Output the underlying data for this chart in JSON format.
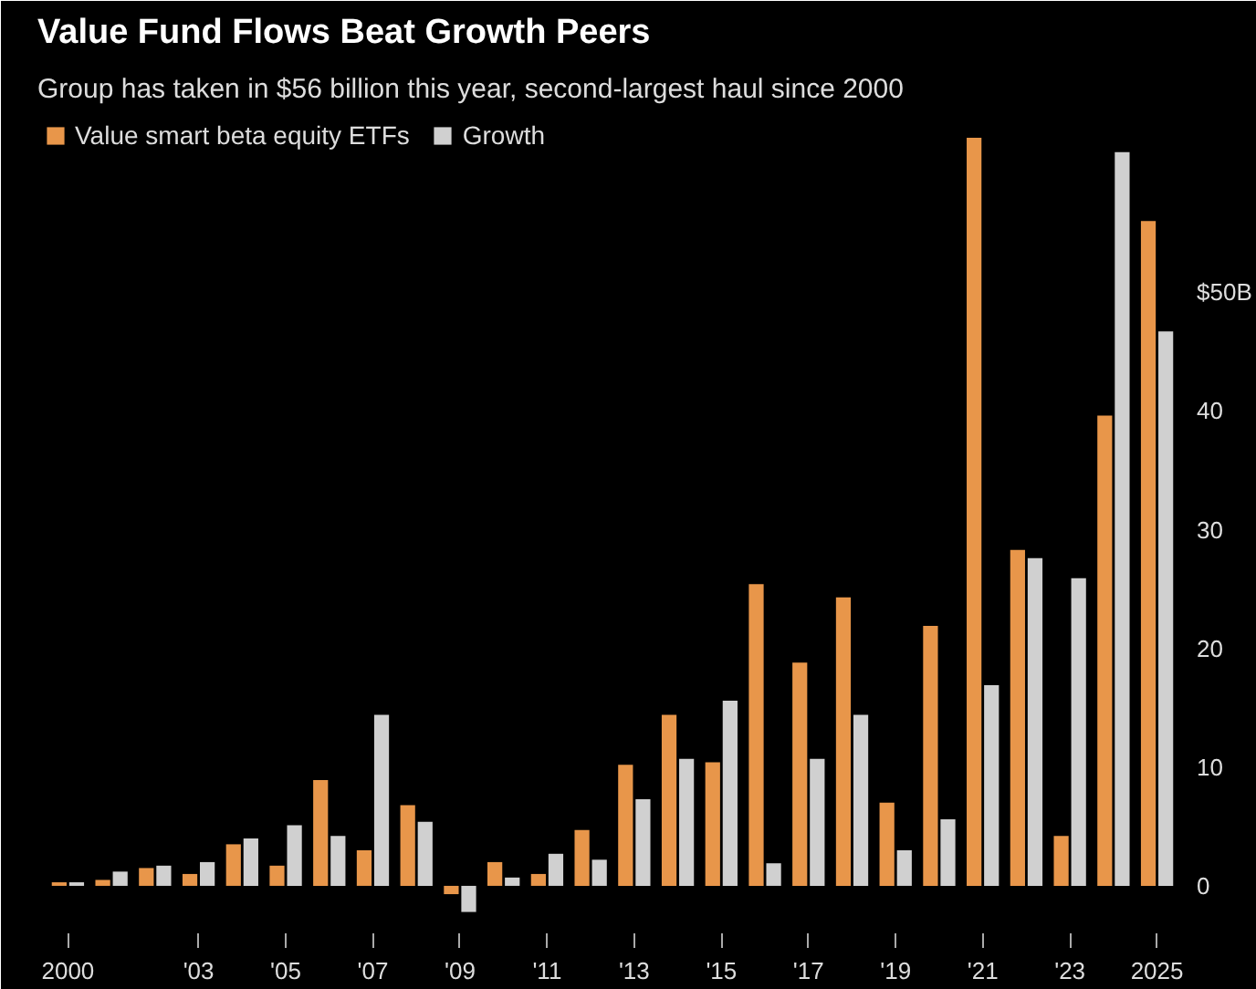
{
  "chart_data": {
    "type": "bar",
    "title": "Value Fund Flows Beat Growth Peers",
    "subtitle": "Group has taken in $56 billion this year, second-largest haul since 2000",
    "x": [
      2000,
      2001,
      2002,
      2003,
      2004,
      2005,
      2006,
      2007,
      2008,
      2009,
      2010,
      2011,
      2012,
      2013,
      2014,
      2015,
      2016,
      2017,
      2018,
      2019,
      2020,
      2021,
      2022,
      2023,
      2024,
      2025
    ],
    "series": [
      {
        "name": "Value smart beta equity ETFs",
        "color": "#e8964a",
        "values": [
          0.3,
          0.5,
          1.5,
          1,
          3.5,
          1.7,
          8.9,
          3,
          6.8,
          -0.7,
          2,
          1,
          4.7,
          10.2,
          14.4,
          10.4,
          25.4,
          18.8,
          24.3,
          7,
          21.9,
          63,
          28.3,
          4.2,
          39.6,
          56
        ]
      },
      {
        "name": "Growth",
        "color": "#d0d0d0",
        "values": [
          0.3,
          1.2,
          1.7,
          2,
          4,
          5.1,
          4.2,
          14.4,
          5.4,
          -2.2,
          0.7,
          2.7,
          2.2,
          7.3,
          10.7,
          15.6,
          1.9,
          10.7,
          14.4,
          3,
          5.6,
          16.9,
          27.6,
          25.9,
          61.8,
          46.7
        ]
      }
    ],
    "xlim": [
      1999.3,
      2025.7
    ],
    "xticks": [
      2000,
      {
        "value": 2003,
        "label": "'03"
      },
      {
        "value": 2005,
        "label": "'05"
      },
      {
        "value": 2007,
        "label": "'07"
      },
      {
        "value": 2009,
        "label": "'09"
      },
      {
        "value": 2011,
        "label": "'11"
      },
      {
        "value": 2013,
        "label": "'13"
      },
      {
        "value": 2015,
        "label": "'15"
      },
      {
        "value": 2017,
        "label": "'17"
      },
      {
        "value": 2019,
        "label": "'19"
      },
      {
        "value": 2021,
        "label": "'21"
      },
      {
        "value": 2023,
        "label": "'23"
      },
      2025
    ],
    "ylim": [
      -4,
      65
    ],
    "yticks": [
      0,
      10,
      20,
      30,
      40,
      {
        "value": 50,
        "label": "$50B"
      }
    ],
    "grid": false,
    "legend": "top left"
  }
}
